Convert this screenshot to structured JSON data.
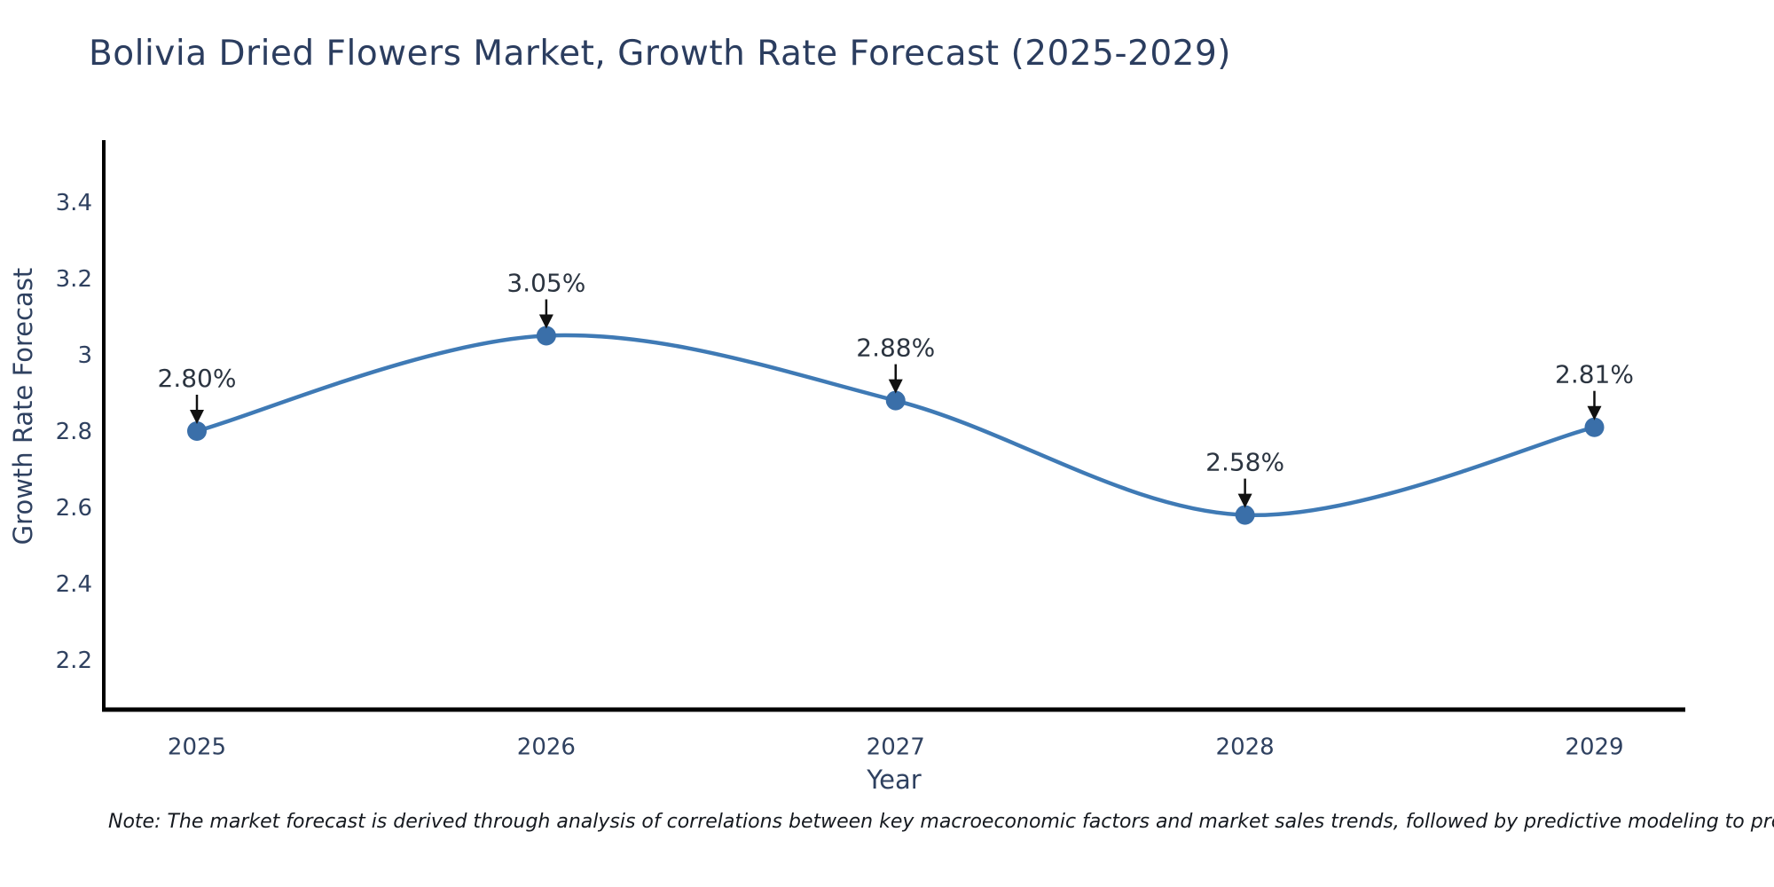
{
  "chart_data": {
    "type": "line",
    "curve": "spline",
    "title": "Bolivia Dried Flowers Market, Growth Rate Forecast (2025-2029)",
    "xlabel": "Year",
    "ylabel": "Growth Rate Forecast",
    "categories": [
      "2025",
      "2026",
      "2027",
      "2028",
      "2029"
    ],
    "values": [
      2.8,
      3.05,
      2.88,
      2.58,
      2.81
    ],
    "point_labels": [
      "2.80%",
      "3.05%",
      "2.88%",
      "2.58%",
      "2.81%"
    ],
    "y_ticks": [
      3.4,
      3.2,
      3.0,
      2.8,
      2.6,
      2.4,
      2.2
    ],
    "y_tick_labels": [
      "3.4",
      "3.2",
      "3",
      "2.8",
      "2.6",
      "2.4",
      "2.2"
    ],
    "ylim": [
      2.07,
      3.56
    ],
    "grid": false,
    "legend": false,
    "colors": {
      "line": "#3f7ab5",
      "marker": "#3a6fa9",
      "axis": "#000000",
      "tick_text": "#2f4160",
      "title_text": "#2b3d5f",
      "annotation_text": "#2b3440",
      "annotation_arrow": "#111111"
    },
    "note": "Note: The market forecast is derived through analysis of correlations between key macroeconomic factors and market sales trends, followed by predictive modeling to project future sales"
  }
}
